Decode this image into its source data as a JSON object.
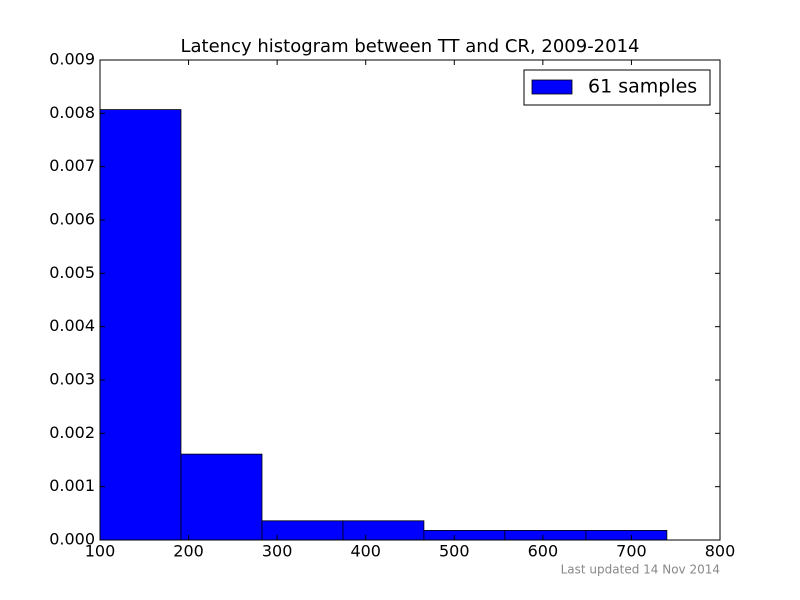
{
  "chart_data": {
    "type": "histogram",
    "title": "Latency histogram between TT and CR, 2009-2014",
    "bins": [
      100,
      191.4,
      282.9,
      374.3,
      465.7,
      557.1,
      648.6,
      740
    ],
    "series": [
      {
        "name": "61 samples",
        "color": "#0000ff",
        "values": [
          0.00807,
          0.00161,
          0.00036,
          0.00036,
          0.00018,
          0.00018,
          0.00018
        ]
      }
    ],
    "xlim": [
      100,
      800
    ],
    "xticks": [
      100,
      200,
      300,
      400,
      500,
      600,
      700,
      800
    ],
    "ylim": [
      0,
      0.009
    ],
    "yticks": [
      {
        "value": 0,
        "label": "0.000"
      },
      {
        "value": 0.001,
        "label": "0.001"
      },
      {
        "value": 0.002,
        "label": "0.002"
      },
      {
        "value": 0.003,
        "label": "0.003"
      },
      {
        "value": 0.004,
        "label": "0.004"
      },
      {
        "value": 0.005,
        "label": "0.005"
      },
      {
        "value": 0.006,
        "label": "0.006"
      },
      {
        "value": 0.007,
        "label": "0.007"
      },
      {
        "value": 0.008,
        "label": "0.008"
      },
      {
        "value": 0.009,
        "label": "0.009"
      }
    ],
    "legend": "upper right",
    "annotation": "Last updated 14 Nov 2014"
  }
}
